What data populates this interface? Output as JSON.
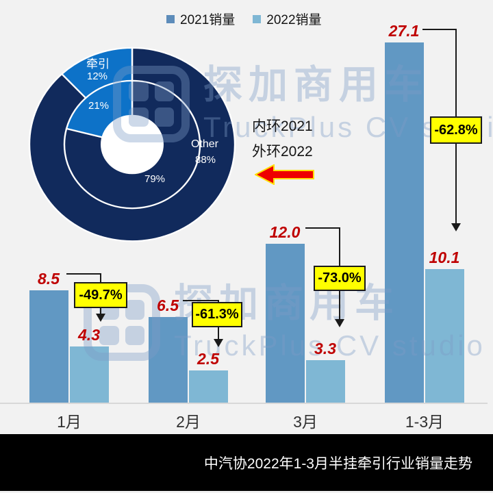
{
  "legend": {
    "items": [
      {
        "label": "2021销量",
        "color": "#5d8cba"
      },
      {
        "label": "2022销量",
        "color": "#7fb7d4"
      }
    ]
  },
  "donut_labels": {
    "traction_name": "牵引",
    "traction_pct_outer": "12%",
    "traction_pct_inner": "21%",
    "other_name": "Other",
    "other_pct_outer": "88%",
    "inner_other_pct": "79%"
  },
  "notes": {
    "inner_ring": "内环2021",
    "outer_ring": "外环2022"
  },
  "watermark": {
    "cn": "探加商用车",
    "en": "TruckPlus CV studio"
  },
  "footer": {
    "title": "中汽协2022年1-3月半挂牵引行业销量走势"
  },
  "chart_data": [
    {
      "type": "pie",
      "subtype": "nested-donut",
      "notes": [
        "内环2021",
        "外环2022"
      ],
      "rings": [
        {
          "name": "外环2022",
          "radius": "outer",
          "segments": [
            {
              "label": "Other",
              "value": 88,
              "color": "#112a5c"
            },
            {
              "label": "牵引",
              "value": 12,
              "color": "#0d72c8"
            }
          ]
        },
        {
          "name": "内环2021",
          "radius": "inner",
          "segments": [
            {
              "label": "Other",
              "value": 79,
              "color": "#112a5c"
            },
            {
              "label": "牵引",
              "value": 21,
              "color": "#0d72c8"
            }
          ]
        }
      ],
      "hole_color": "#ffffff",
      "start_angle_deg": 0,
      "direction": "clockwise"
    },
    {
      "type": "bar",
      "categories": [
        "1月",
        "2月",
        "3月",
        "1-3月"
      ],
      "series": [
        {
          "name": "2021销量",
          "color": "#6198c3",
          "values": [
            8.5,
            6.5,
            12.0,
            27.1
          ]
        },
        {
          "name": "2022销量",
          "color": "#7fb7d4",
          "values": [
            4.3,
            2.5,
            3.3,
            10.1
          ]
        }
      ],
      "yoy_change": [
        "-49.7%",
        "-61.3%",
        "-73.0%",
        "-62.8%"
      ],
      "ylim": [
        0,
        28
      ],
      "value_label_color": "#bf0000",
      "change_label_bg": "#ffff00",
      "grid": false,
      "legend_position": "top"
    }
  ]
}
